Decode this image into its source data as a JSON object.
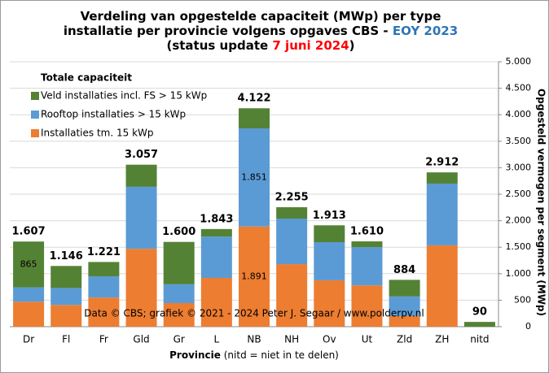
{
  "chart_data": {
    "type": "stacked_bar",
    "title_lines": [
      [
        {
          "text": "Verdeling van opgestelde capaciteit (MWp) per type",
          "color": "#000000"
        }
      ],
      [
        {
          "text": "installatie per provincie volgens opgaves CBS - ",
          "color": "#000000"
        },
        {
          "text": "EOY 2023",
          "color": "#2e75b6"
        }
      ],
      [
        {
          "text": "(status update ",
          "color": "#000000"
        },
        {
          "text": "7 juni 2024",
          "color": "#ff0000"
        },
        {
          "text": ")",
          "color": "#000000"
        }
      ]
    ],
    "legend_title": "Totale capaciteit",
    "y_label": "Opgesteld vermogen per segment (MWp)",
    "x_label": "Provincie",
    "x_label_note": " (nitd = niet in te delen)",
    "annotation": "Data © CBS; grafiek © 2021 - 2024 Peter J. Segaar / www.polderpv.nl",
    "categories": [
      "Dr",
      "Fl",
      "Fr",
      "Gld",
      "Gr",
      "L",
      "NB",
      "NH",
      "Ov",
      "Ut",
      "Zld",
      "ZH",
      "nitd"
    ],
    "series": [
      {
        "name": "Installaties tm. 15 kWp",
        "color": "#ed7d31",
        "values": [
          470,
          410,
          550,
          1470,
          445,
          920,
          1891,
          1180,
          875,
          780,
          200,
          1535,
          0
        ],
        "value_labels": [
          null,
          null,
          null,
          null,
          null,
          null,
          "1.891",
          null,
          null,
          null,
          null,
          null,
          null
        ]
      },
      {
        "name": "Rooftop installaties > 15 kWp",
        "color": "#5b9bd5",
        "values": [
          272,
          320,
          400,
          1170,
          355,
          780,
          1851,
          860,
          720,
          720,
          370,
          1165,
          0
        ],
        "value_labels": [
          null,
          null,
          null,
          null,
          null,
          null,
          "1.851",
          null,
          null,
          null,
          null,
          null,
          null
        ]
      },
      {
        "name": "Veld installaties incl. FS > 15 kWp",
        "color": "#548235",
        "values": [
          865,
          416,
          271,
          417,
          800,
          143,
          380,
          215,
          318,
          110,
          314,
          212,
          90
        ],
        "value_labels": [
          "865",
          null,
          null,
          null,
          null,
          null,
          null,
          null,
          null,
          null,
          null,
          null,
          null
        ]
      }
    ],
    "totals": {
      "values": [
        1607,
        1146,
        1221,
        3057,
        1600,
        1843,
        4122,
        2255,
        1913,
        1610,
        884,
        2912,
        90
      ],
      "value_labels": [
        "1.607",
        "1.146",
        "1.221",
        "3.057",
        "1.600",
        "1.843",
        "4.122",
        "2.255",
        "1.913",
        "1.610",
        "884",
        "2.912",
        "90"
      ]
    },
    "ylim": [
      0,
      5000
    ],
    "yticks": [
      0,
      500,
      {
        "value": 1000,
        "label": "1.000"
      },
      {
        "value": 1500,
        "label": "1.500"
      },
      {
        "value": 2000,
        "label": "2.000"
      },
      {
        "value": 2500,
        "label": "2.500"
      },
      {
        "value": 3000,
        "label": "3.000"
      },
      {
        "value": 3500,
        "label": "3.500"
      },
      {
        "value": 4000,
        "label": "4.000"
      },
      {
        "value": 4500,
        "label": "4.500"
      },
      {
        "value": 5000,
        "label": "5.000"
      }
    ],
    "grid": true
  }
}
